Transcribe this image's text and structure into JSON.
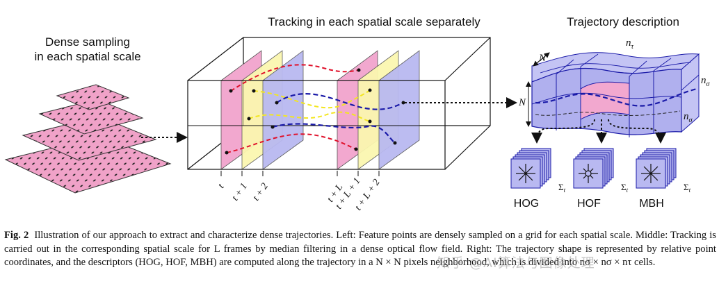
{
  "titles": {
    "left_line1": "Dense sampling",
    "left_line2": "in each spatial scale",
    "middle": "Tracking in each spatial scale separately",
    "right": "Trajectory description"
  },
  "frame_labels": [
    "t",
    "t + 1",
    "t + 2",
    "t + L",
    "t + L + 1",
    "t + L + 2"
  ],
  "grid_labels": {
    "N_top": "N",
    "N_left": "N",
    "n_tau": "n",
    "n_tau_sub": "τ",
    "n_sigma_1": "n",
    "n_sigma_1_sub": "σ",
    "n_sigma_2": "n",
    "n_sigma_2_sub": "σ"
  },
  "descriptors": [
    {
      "name": "HOG",
      "sum_label": "Σ",
      "sum_sub": "t"
    },
    {
      "name": "HOF",
      "sum_label": "Σ",
      "sum_sub": "t"
    },
    {
      "name": "MBH",
      "sum_label": "Σ",
      "sum_sub": "t"
    }
  ],
  "colors": {
    "pink": "#f2a8cf",
    "yellow": "#fbf7b0",
    "lavender": "#b9b9f1",
    "red_path": "#e0102a",
    "yellow_path": "#f3e61f",
    "blue_path": "#1a1aa8",
    "dot_pink": "#f0a2c8"
  },
  "caption": {
    "label": "Fig. 2",
    "text": "Illustration of our approach to extract and characterize dense trajectories. Left: Feature points are densely sampled on a grid for each spatial scale. Middle: Tracking is carried out in the corresponding spatial scale for L frames by median filtering in a dense optical flow field. Right: The trajectory shape is represented by relative point coordinates, and the descriptors (HOG, HOF, MBH) are computed along the trajectory in a N × N pixels neighborhood, which is divided into nσ × nσ × nτ cells."
  },
  "watermark": "知乎 @AI算法与图像处理"
}
